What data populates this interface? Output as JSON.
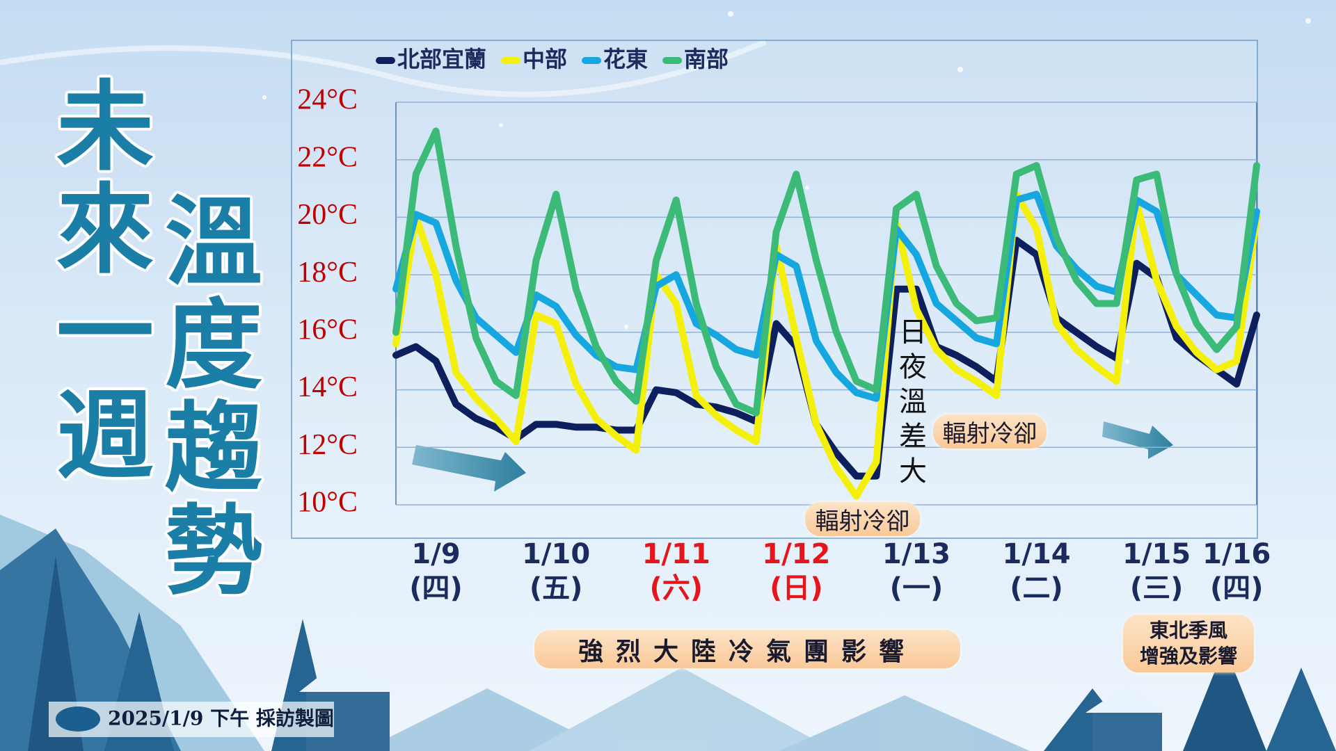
{
  "chart_data": {
    "type": "line",
    "title_lines": [
      "未來一週",
      "溫度趨勢"
    ],
    "categories": [
      null,
      null,
      "1/9",
      null,
      null,
      null,
      null,
      null,
      "1/10",
      null,
      null,
      null,
      null,
      null,
      "1/11",
      null,
      null,
      null,
      null,
      null,
      "1/12",
      null,
      null,
      null,
      null,
      null,
      "1/13",
      null,
      null,
      null,
      null,
      null,
      "1/14",
      null,
      null,
      null,
      null,
      null,
      "1/15",
      null,
      null,
      null,
      "1/16",
      null
    ],
    "weekdays": [
      null,
      null,
      "(四)",
      null,
      null,
      null,
      null,
      null,
      "(五)",
      null,
      null,
      null,
      null,
      null,
      "(六)",
      null,
      null,
      null,
      null,
      null,
      "(日)",
      null,
      null,
      null,
      null,
      null,
      "(一)",
      null,
      null,
      null,
      null,
      null,
      "(二)",
      null,
      null,
      null,
      null,
      null,
      "(三)",
      null,
      null,
      null,
      "(四)",
      null
    ],
    "category_colors": [
      null,
      null,
      "#1b2b5e",
      null,
      null,
      null,
      null,
      null,
      "#1b2b5e",
      null,
      null,
      null,
      null,
      null,
      "#e8141b",
      null,
      null,
      null,
      null,
      null,
      "#e8141b",
      null,
      null,
      null,
      null,
      null,
      "#1b2b5e",
      null,
      null,
      null,
      null,
      null,
      "#1b2b5e",
      null,
      null,
      null,
      null,
      null,
      "#1b2b5e",
      null,
      null,
      null,
      "#1b2b5e",
      null
    ],
    "series": [
      {
        "name": "北部宜蘭",
        "color": "#0d1f5c",
        "values": [
          15.2,
          15.5,
          15.0,
          13.5,
          13.0,
          12.7,
          12.3,
          12.8,
          12.8,
          12.7,
          12.7,
          12.6,
          12.6,
          14.0,
          13.9,
          13.5,
          13.4,
          13.2,
          12.9,
          16.3,
          15.5,
          12.8,
          11.8,
          11.0,
          11.0,
          17.5,
          17.5,
          15.5,
          15.2,
          14.8,
          14.3,
          19.2,
          18.7,
          16.5,
          16.0,
          15.5,
          15.1,
          18.4,
          17.9,
          15.8,
          15.2,
          14.7,
          14.2,
          16.6
        ]
      },
      {
        "name": "中部",
        "color": "#f5f00a",
        "values": [
          15.6,
          20.0,
          18.0,
          14.6,
          13.7,
          13.0,
          12.2,
          16.6,
          16.3,
          14.2,
          13.0,
          12.4,
          11.9,
          18.0,
          17.0,
          13.8,
          13.1,
          12.6,
          12.2,
          19.0,
          15.8,
          12.8,
          11.3,
          10.3,
          11.5,
          19.8,
          16.8,
          15.4,
          14.7,
          14.3,
          13.8,
          20.8,
          19.6,
          16.3,
          15.4,
          14.8,
          14.3,
          20.5,
          17.8,
          16.2,
          15.3,
          14.7,
          15.0,
          20.0
        ]
      },
      {
        "name": "花東",
        "color": "#16a6e0",
        "values": [
          17.5,
          20.1,
          19.8,
          17.8,
          16.5,
          15.9,
          15.3,
          17.3,
          16.9,
          15.9,
          15.2,
          14.8,
          14.7,
          17.6,
          18.0,
          16.3,
          15.9,
          15.4,
          15.2,
          18.7,
          18.3,
          15.7,
          14.6,
          13.9,
          13.7,
          19.6,
          18.7,
          17.0,
          16.4,
          15.8,
          15.6,
          20.6,
          20.8,
          19.0,
          18.2,
          17.6,
          17.4,
          20.6,
          20.2,
          18.0,
          17.3,
          16.6,
          16.5,
          20.2
        ]
      },
      {
        "name": "南部",
        "color": "#3cbb78",
        "values": [
          16.0,
          21.5,
          23.0,
          19.0,
          15.8,
          14.3,
          13.8,
          18.5,
          20.8,
          17.5,
          15.5,
          14.3,
          13.6,
          18.5,
          20.6,
          17.0,
          14.8,
          13.5,
          13.2,
          19.5,
          21.5,
          18.5,
          16.0,
          14.3,
          14.0,
          20.3,
          20.8,
          18.3,
          17.0,
          16.4,
          16.5,
          21.5,
          21.8,
          19.3,
          17.8,
          17.0,
          17.0,
          21.3,
          21.5,
          18.0,
          16.3,
          15.4,
          16.2,
          21.8
        ]
      }
    ],
    "ylim": [
      10,
      24
    ],
    "yticks": [
      {
        "value": 10,
        "label": "10°C"
      },
      {
        "value": 12,
        "label": "12°C"
      },
      {
        "value": 14,
        "label": "14°C"
      },
      {
        "value": 16,
        "label": "16°C"
      },
      {
        "value": 18,
        "label": "18°C"
      },
      {
        "value": 20,
        "label": "20°C"
      },
      {
        "value": 22,
        "label": "22°C"
      },
      {
        "value": 24,
        "label": "24°C"
      }
    ],
    "ytick_color": "#c00000",
    "grid": true,
    "legend": "top-left",
    "annotations": [
      {
        "text": "日夜溫差大"
      },
      {
        "text": "輻射冷卻"
      },
      {
        "text": "輻射冷卻"
      },
      {
        "text": "強烈大陸冷氣團影響"
      },
      {
        "text": "東北季風\n增強及影響"
      }
    ]
  },
  "footer": "2025/1/9 下午 採訪製圖"
}
